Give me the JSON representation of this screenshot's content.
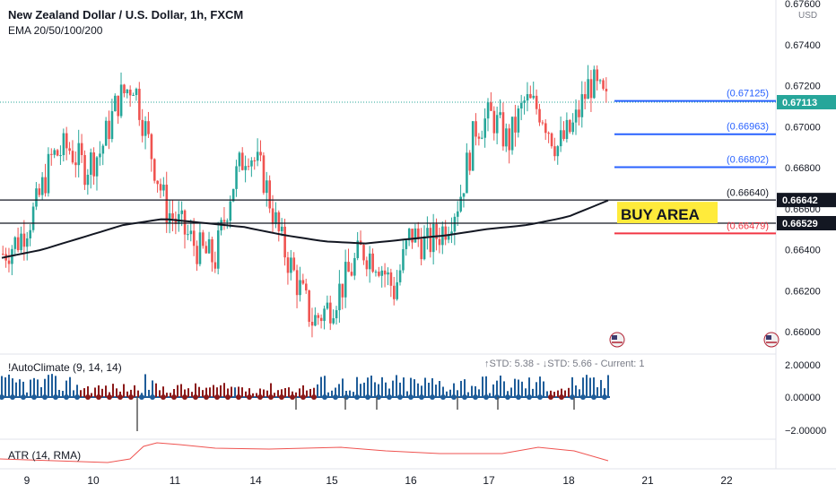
{
  "header": {
    "title": "New Zealand Dollar / U.S. Dollar, 1h, FXCM",
    "indicator": "EMA 20/50/100/200"
  },
  "price_axis": {
    "currency": "USD",
    "ticks": [
      "0.67600",
      "0.67400",
      "0.67200",
      "0.67000",
      "0.66800",
      "0.66600",
      "0.66400",
      "0.66200",
      "0.66000"
    ]
  },
  "badges": {
    "current": "0.67113",
    "level_top": "0.66642",
    "level_bottom": "0.66529"
  },
  "levels": [
    {
      "label": "(0.67125)",
      "price": 0.67125,
      "color": "#2962ff"
    },
    {
      "label": "(0.66963)",
      "price": 0.66963,
      "color": "#2962ff"
    },
    {
      "label": "(0.66802)",
      "price": 0.66802,
      "color": "#2962ff"
    },
    {
      "label": "(0.66640)",
      "price": 0.6664,
      "color": "#131722"
    },
    {
      "label": "(0.66479)",
      "price": 0.66479,
      "color": "#f23645"
    }
  ],
  "buy_area": {
    "label": "BUY AREA",
    "color": "#ffeb3b"
  },
  "horizontal_lines": [
    0.66642,
    0.66529
  ],
  "autoclimate": {
    "label": "!AutoClimate (9, 14, 14)",
    "stats": "↑STD: 5.38 - ↓STD: 5.66 - Current: 1",
    "ticks": [
      "2.00000",
      "0.00000",
      "−2.00000"
    ]
  },
  "atr": {
    "label": "ATR (14, RMA)"
  },
  "time_axis": {
    "labels": [
      "9",
      "10",
      "11",
      "14",
      "15",
      "16",
      "17",
      "18",
      "21",
      "22"
    ]
  },
  "colors": {
    "up": "#26a69a",
    "down": "#ef5350",
    "ema": "#131722",
    "atr": "#ef5350",
    "dot_blue": "#1f5d99",
    "dot_red": "#8b1a1a"
  },
  "chart_data": {
    "type": "candlestick",
    "ylim": [
      0.659,
      0.677
    ],
    "ohlc_x_labels": [
      "9",
      "10",
      "11",
      "14",
      "15",
      "16",
      "17",
      "18"
    ],
    "close_path": [
      0.6638,
      0.6645,
      0.666,
      0.6685,
      0.669,
      0.668,
      0.6688,
      0.6712,
      0.6722,
      0.669,
      0.666,
      0.665,
      0.664,
      0.6635,
      0.667,
      0.669,
      0.6675,
      0.6645,
      0.6625,
      0.6605,
      0.6612,
      0.6625,
      0.664,
      0.6635,
      0.662,
      0.6648,
      0.6642,
      0.665,
      0.6665,
      0.67,
      0.6705,
      0.6692,
      0.6712,
      0.6708,
      0.669,
      0.67,
      0.6722,
      0.6711
    ],
    "ema_path": [
      0.6636,
      0.664,
      0.6646,
      0.6652,
      0.6655,
      0.6653,
      0.6651,
      0.6647,
      0.6644,
      0.6643,
      0.6645,
      0.6647,
      0.665,
      0.6652,
      0.6656,
      0.6664
    ]
  }
}
